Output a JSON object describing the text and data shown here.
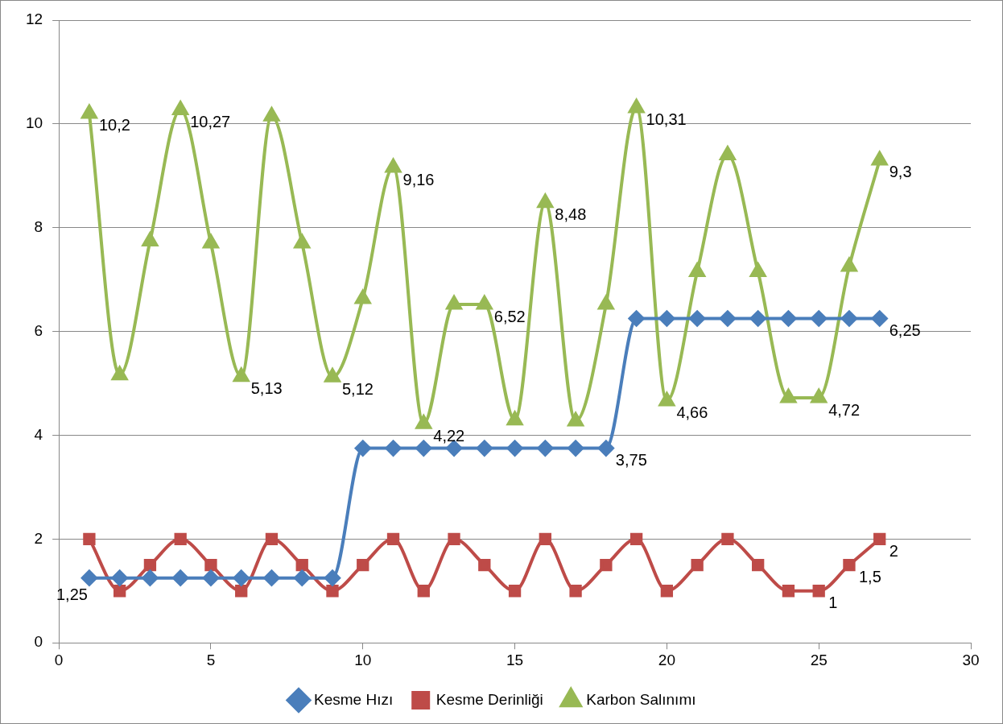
{
  "chart_data": {
    "type": "line",
    "x": [
      1,
      2,
      3,
      4,
      5,
      6,
      7,
      8,
      9,
      10,
      11,
      12,
      13,
      14,
      15,
      16,
      17,
      18,
      19,
      20,
      21,
      22,
      23,
      24,
      25,
      26,
      27
    ],
    "xlim": [
      0,
      30
    ],
    "xticks": [
      0,
      5,
      10,
      15,
      20,
      25,
      30
    ],
    "ylim": [
      0,
      12
    ],
    "yticks": [
      0,
      2,
      4,
      6,
      8,
      10,
      12
    ],
    "grid": "y",
    "legend": "bottom",
    "series": [
      {
        "name": "Kesme Hızı",
        "color": "#4a7ebb",
        "marker": "diamond",
        "values": [
          1.25,
          1.25,
          1.25,
          1.25,
          1.25,
          1.25,
          1.25,
          1.25,
          1.25,
          3.75,
          3.75,
          3.75,
          3.75,
          3.75,
          3.75,
          3.75,
          3.75,
          3.75,
          6.25,
          6.25,
          6.25,
          6.25,
          6.25,
          6.25,
          6.25,
          6.25,
          6.25
        ],
        "value_labels": [
          "1,25",
          null,
          null,
          null,
          null,
          null,
          null,
          null,
          null,
          null,
          null,
          null,
          null,
          null,
          null,
          null,
          null,
          "3,75",
          null,
          null,
          null,
          null,
          null,
          null,
          null,
          null,
          "6,25"
        ]
      },
      {
        "name": "Kesme Derinliği",
        "color": "#be4b48",
        "marker": "square",
        "values": [
          2,
          1,
          1.5,
          2,
          1.5,
          1,
          2,
          1.5,
          1,
          1.5,
          2,
          1,
          2,
          1.5,
          1,
          2,
          1,
          1.5,
          2,
          1,
          1.5,
          2,
          1.5,
          1,
          1,
          1.5,
          2
        ],
        "value_labels": [
          null,
          null,
          null,
          null,
          null,
          null,
          null,
          null,
          null,
          null,
          null,
          null,
          null,
          null,
          null,
          null,
          null,
          null,
          null,
          null,
          null,
          null,
          null,
          null,
          "1",
          "1,5",
          "2"
        ]
      },
      {
        "name": "Karbon Salınımı",
        "color": "#98b954",
        "marker": "triangle",
        "values": [
          10.2,
          5.16,
          7.74,
          10.27,
          7.7,
          5.13,
          10.15,
          7.7,
          5.12,
          6.63,
          9.16,
          4.22,
          6.52,
          6.52,
          4.29,
          8.48,
          4.27,
          6.52,
          10.31,
          4.66,
          7.15,
          9.4,
          7.15,
          4.72,
          4.72,
          7.25,
          9.3
        ],
        "value_labels": [
          "10,2",
          null,
          null,
          "10,27",
          null,
          "5,13",
          null,
          null,
          "5,12",
          null,
          "9,16",
          "4,22",
          null,
          "6,52",
          null,
          "8,48",
          null,
          null,
          "10,31",
          "4,66",
          null,
          null,
          null,
          null,
          "4,72",
          null,
          "9,3"
        ]
      }
    ]
  }
}
